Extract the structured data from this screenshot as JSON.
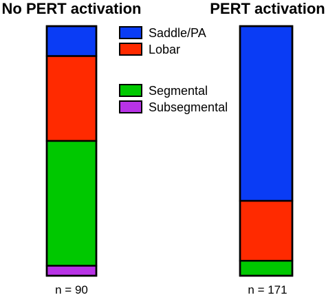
{
  "chart_data": {
    "type": "bar",
    "stacked": true,
    "normalized_percent": true,
    "ylim": [
      0,
      100
    ],
    "grid": false,
    "legend_position": "center",
    "categories": [
      "No PERT activation",
      "PERT activation"
    ],
    "category_n_labels": [
      "n = 90",
      "n = 171"
    ],
    "series": [
      {
        "name": "Saddle/PA",
        "color": "#0a3cf5",
        "values": [
          12,
          70
        ]
      },
      {
        "name": "Lobar",
        "color": "#ff2a00",
        "values": [
          34,
          24
        ]
      },
      {
        "name": "Segmental",
        "color": "#00c800",
        "values": [
          50,
          6
        ]
      },
      {
        "name": "Subsegmental",
        "color": "#b833e6",
        "values": [
          4,
          0
        ]
      }
    ]
  }
}
